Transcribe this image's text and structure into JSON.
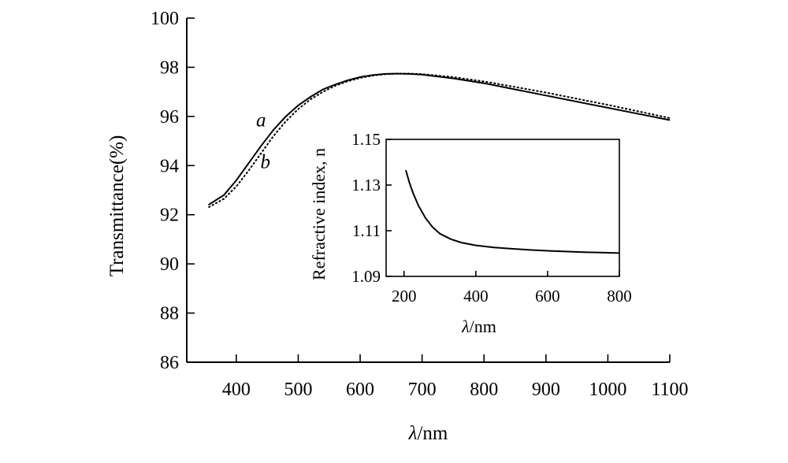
{
  "chart_data": [
    {
      "type": "line",
      "xlabel_symbol": "λ",
      "xlabel_unit": "/nm",
      "ylabel": "Transmittance(%)",
      "xlim": [
        320,
        1100
      ],
      "ylim": [
        86,
        100
      ],
      "xticks": [
        400,
        500,
        600,
        700,
        800,
        900,
        1000,
        1100
      ],
      "yticks": [
        86,
        88,
        90,
        92,
        94,
        96,
        98,
        100
      ],
      "series": [
        {
          "name": "a",
          "style": "solid",
          "x": [
            355,
            380,
            400,
            420,
            440,
            460,
            480,
            500,
            520,
            540,
            560,
            580,
            600,
            620,
            640,
            660,
            680,
            700,
            750,
            800,
            850,
            900,
            950,
            1000,
            1050,
            1100
          ],
          "y": [
            92.4,
            92.8,
            93.4,
            94.1,
            94.8,
            95.45,
            96.0,
            96.45,
            96.8,
            97.1,
            97.3,
            97.47,
            97.6,
            97.68,
            97.73,
            97.74,
            97.73,
            97.7,
            97.55,
            97.35,
            97.1,
            96.85,
            96.6,
            96.35,
            96.1,
            95.85
          ]
        },
        {
          "name": "b",
          "style": "dashed",
          "x": [
            355,
            380,
            400,
            420,
            440,
            460,
            480,
            500,
            520,
            540,
            560,
            580,
            600,
            620,
            640,
            660,
            680,
            700,
            750,
            800,
            850,
            900,
            950,
            1000,
            1050,
            1100
          ],
          "y": [
            92.3,
            92.65,
            93.15,
            93.8,
            94.5,
            95.2,
            95.8,
            96.3,
            96.7,
            97.0,
            97.25,
            97.43,
            97.57,
            97.66,
            97.72,
            97.74,
            97.74,
            97.72,
            97.6,
            97.42,
            97.2,
            96.97,
            96.72,
            96.47,
            96.2,
            95.93
          ]
        }
      ],
      "series_labels": [
        {
          "text": "a",
          "x": 440,
          "y": 95.6
        },
        {
          "text": "b",
          "x": 447,
          "y": 93.9
        }
      ]
    },
    {
      "type": "line",
      "role": "inset",
      "xlabel_symbol": "λ",
      "xlabel_unit": "/nm",
      "ylabel": "Refractive index, n",
      "xlim": [
        150,
        800
      ],
      "ylim": [
        1.09,
        1.15
      ],
      "xticks": [
        200,
        400,
        600,
        800
      ],
      "yticks": [
        1.09,
        1.11,
        1.13,
        1.15
      ],
      "ytick_labels": [
        "1.09",
        "1.11",
        "1.13",
        "1.15"
      ],
      "series": [
        {
          "style": "solid",
          "x": [
            205,
            215,
            225,
            240,
            260,
            280,
            300,
            330,
            360,
            400,
            450,
            500,
            550,
            600,
            650,
            700,
            750,
            800
          ],
          "y": [
            1.1365,
            1.131,
            1.1265,
            1.121,
            1.1155,
            1.1115,
            1.1087,
            1.1063,
            1.1048,
            1.1036,
            1.1027,
            1.1021,
            1.1016,
            1.1012,
            1.1009,
            1.1006,
            1.1004,
            1.1002
          ]
        }
      ]
    }
  ]
}
